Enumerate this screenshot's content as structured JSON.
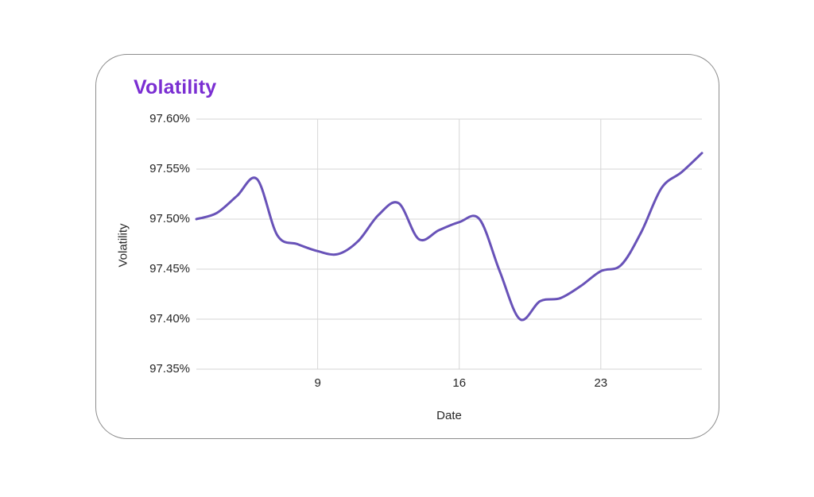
{
  "card": {
    "title": "Volatility"
  },
  "chart_data": {
    "type": "line",
    "title": "Volatility",
    "xlabel": "Date",
    "ylabel": "Volatility",
    "x": [
      3,
      4,
      5,
      6,
      7,
      8,
      9,
      10,
      11,
      12,
      13,
      14,
      15,
      16,
      17,
      18,
      19,
      20,
      21,
      22,
      23,
      24,
      25,
      26,
      27,
      28
    ],
    "series": [
      {
        "name": "Volatility",
        "values": [
          97.5,
          97.506,
          97.523,
          97.54,
          97.484,
          97.475,
          97.468,
          97.465,
          97.478,
          97.504,
          97.516,
          97.48,
          97.489,
          97.497,
          97.5,
          97.448,
          97.4,
          97.418,
          97.421,
          97.433,
          97.448,
          97.454,
          97.487,
          97.531,
          97.547,
          97.566
        ]
      }
    ],
    "xlim": [
      3,
      28
    ],
    "ylim": [
      97.35,
      97.6
    ],
    "y_ticks": [
      {
        "value": 97.6,
        "label": "97.60%"
      },
      {
        "value": 97.55,
        "label": "97.55%"
      },
      {
        "value": 97.5,
        "label": "97.50%"
      },
      {
        "value": 97.45,
        "label": "97.45%"
      },
      {
        "value": 97.4,
        "label": "97.40%"
      },
      {
        "value": 97.35,
        "label": "97.35%"
      }
    ],
    "x_ticks": [
      {
        "value": 9,
        "label": "9"
      },
      {
        "value": 16,
        "label": "16"
      },
      {
        "value": 23,
        "label": "23"
      }
    ],
    "grid": true,
    "legend": false
  },
  "colors": {
    "title": "#7A2ED2",
    "line": "#6852B8",
    "grid": "#D6D6D6",
    "tick_text": "#262626",
    "card_border": "#8C8C8C",
    "background": "#FFFFFF"
  }
}
